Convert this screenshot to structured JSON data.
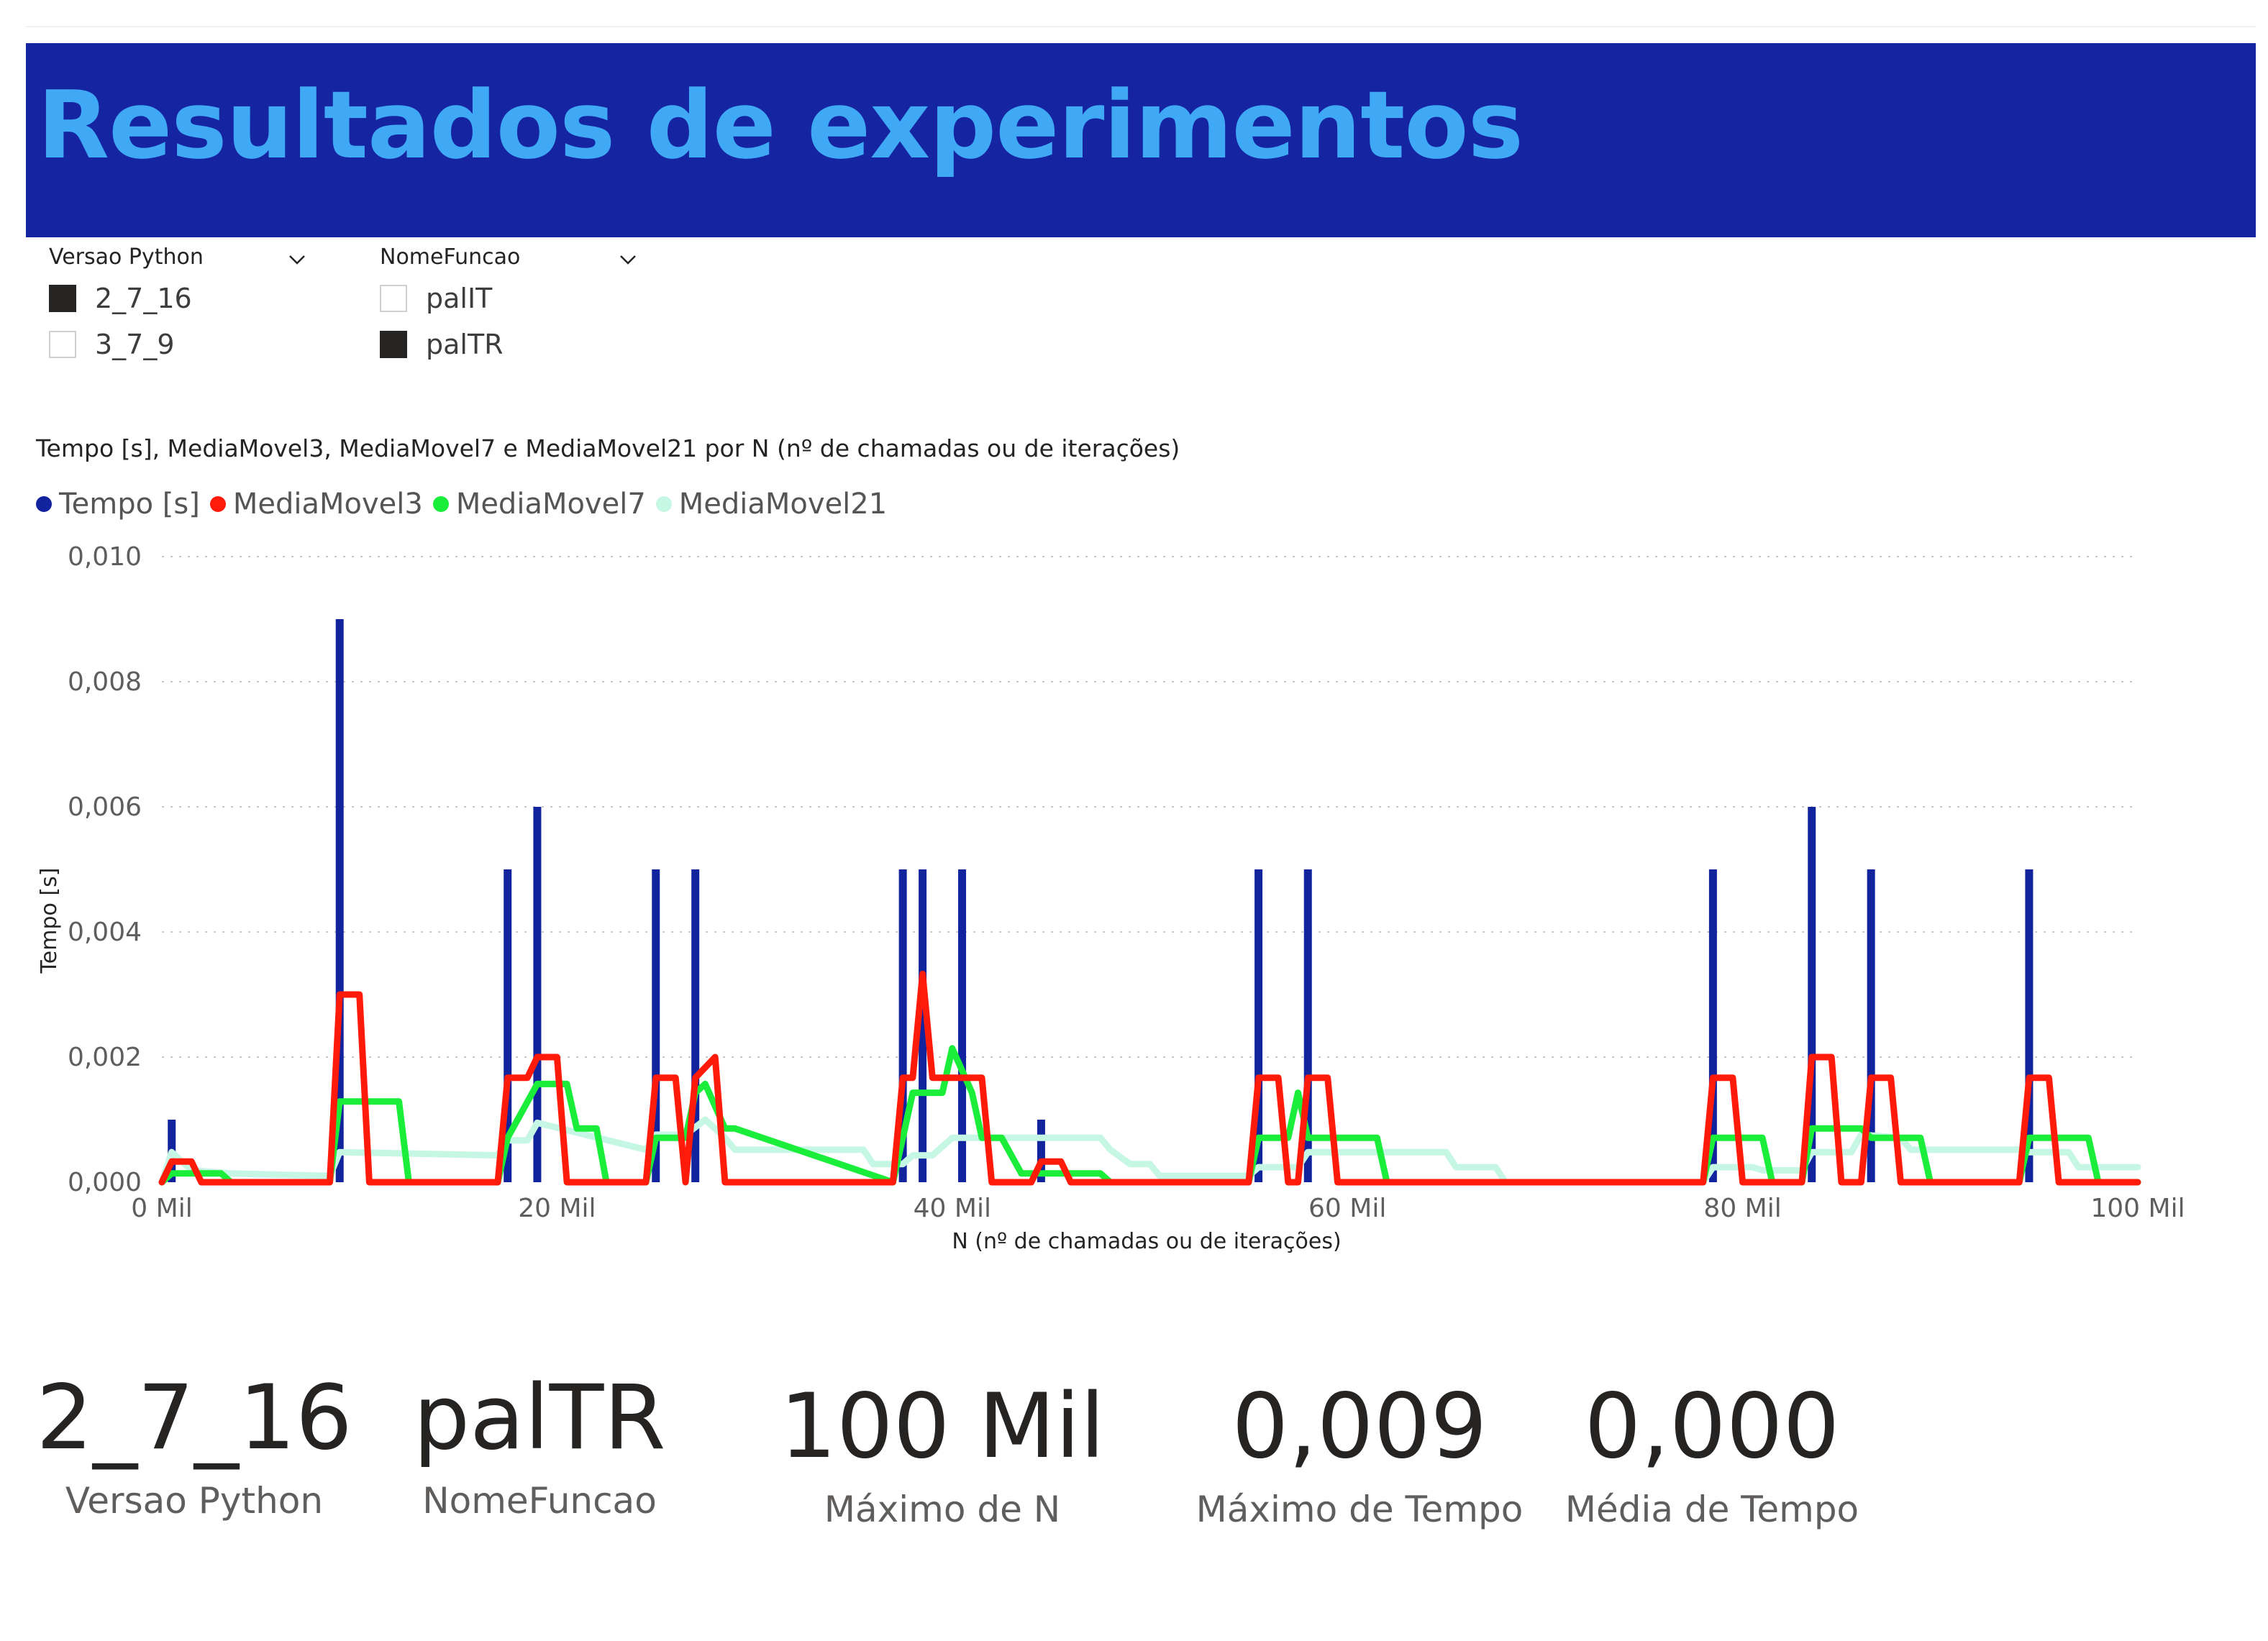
{
  "header": {
    "title": "Resultados de experimentos",
    "banner_color": "#1524a1",
    "title_color": "#3fa9f5"
  },
  "slicers": [
    {
      "title": "Versao Python",
      "icon": "chevron-down-icon",
      "items": [
        {
          "label": "2_7_16",
          "checked": true
        },
        {
          "label": "3_7_9",
          "checked": false
        }
      ]
    },
    {
      "title": "NomeFuncao",
      "icon": "chevron-down-icon",
      "items": [
        {
          "label": "palIT",
          "checked": false
        },
        {
          "label": "palTR",
          "checked": true
        }
      ]
    }
  ],
  "chart_data": {
    "type": "line",
    "title": "Tempo [s], MediaMovel3, MediaMovel7 e MediaMovel21 por N (nº de chamadas ou de iterações)",
    "xlabel": "N (nº de chamadas ou de iterações)",
    "ylabel": "Tempo [s]",
    "xlim": [
      0,
      100000
    ],
    "ylim": [
      0,
      0.01
    ],
    "x_ticks": [
      {
        "value": 0,
        "label": "0 Mil"
      },
      {
        "value": 20000,
        "label": "20 Mil"
      },
      {
        "value": 40000,
        "label": "40 Mil"
      },
      {
        "value": 60000,
        "label": "60 Mil"
      },
      {
        "value": 80000,
        "label": "80 Mil"
      },
      {
        "value": 100000,
        "label": "100 Mil"
      }
    ],
    "y_ticks": [
      {
        "value": 0,
        "label": "0,000"
      },
      {
        "value": 0.002,
        "label": "0,002"
      },
      {
        "value": 0.004,
        "label": "0,004"
      },
      {
        "value": 0.006,
        "label": "0,006"
      },
      {
        "value": 0.008,
        "label": "0,008"
      },
      {
        "value": 0.01,
        "label": "0,010"
      }
    ],
    "grid": "horizontal-dotted",
    "legend_position": "top-left",
    "series": [
      {
        "name": "Tempo [s]",
        "color": "#12239e",
        "style": "spikes",
        "x": [
          500,
          9000,
          17500,
          19000,
          25000,
          27000,
          37500,
          38500,
          40500,
          44500,
          55500,
          58000,
          78500,
          83500,
          86500,
          94500
        ],
        "y": [
          0.001,
          0.009,
          0.005,
          0.006,
          0.005,
          0.005,
          0.005,
          0.005,
          0.005,
          0.001,
          0.005,
          0.005,
          0.005,
          0.006,
          0.005,
          0.005
        ]
      },
      {
        "name": "MediaMovel3",
        "color": "#ff1a0a",
        "x": [
          0,
          500,
          1500,
          2000,
          3500,
          4000,
          8500,
          9000,
          10000,
          10500,
          17000,
          17500,
          18500,
          19000,
          20000,
          20500,
          24500,
          25000,
          26000,
          26500,
          27000,
          28000,
          28500,
          37000,
          37500,
          38000,
          38500,
          39000,
          40000,
          40500,
          41500,
          42000,
          44000,
          44500,
          45500,
          46000,
          55000,
          55500,
          56500,
          57000,
          57500,
          58000,
          59000,
          59500,
          78000,
          78500,
          79500,
          80000,
          83000,
          83500,
          84500,
          85000,
          86000,
          86500,
          87500,
          88000,
          94000,
          94500,
          95500,
          96000,
          100000
        ],
        "y": [
          0,
          0.00033,
          0.00033,
          0,
          0,
          0,
          0,
          0.003,
          0.003,
          0,
          0,
          0.00167,
          0.00167,
          0.002,
          0.002,
          0,
          0,
          0.00167,
          0.00167,
          0,
          0.00167,
          0.002,
          0,
          0,
          0.00167,
          0.00167,
          0.00333,
          0.00167,
          0.00167,
          0.00167,
          0.00167,
          0,
          0,
          0.00033,
          0.00033,
          0,
          0,
          0.00167,
          0.00167,
          0,
          0,
          0.00167,
          0.00167,
          0,
          0,
          0.00167,
          0.00167,
          0,
          0,
          0.002,
          0.002,
          0,
          0,
          0.00167,
          0.00167,
          0,
          0,
          0.00167,
          0.00167,
          0,
          0
        ]
      },
      {
        "name": "MediaMovel7",
        "color": "#1aee3a",
        "x": [
          0,
          500,
          1000,
          3000,
          3500,
          8500,
          9000,
          12000,
          12500,
          17000,
          17500,
          19000,
          20500,
          21000,
          22000,
          22500,
          24500,
          25000,
          26500,
          27000,
          27500,
          28500,
          29000,
          37000,
          37500,
          38000,
          39500,
          40000,
          41000,
          41500,
          42500,
          43500,
          44000,
          47500,
          48000,
          55000,
          55500,
          57000,
          57500,
          58000,
          61500,
          62000,
          78000,
          78500,
          81000,
          81500,
          83000,
          83500,
          86000,
          86500,
          89000,
          89500,
          94000,
          94500,
          97500,
          98000,
          100000
        ],
        "y": [
          0,
          0.00014,
          0.00014,
          0.00014,
          0,
          0,
          0.00129,
          0.00129,
          0,
          0,
          0.00071,
          0.00157,
          0.00157,
          0.00086,
          0.00086,
          0,
          0,
          0.00071,
          0.00071,
          0.00143,
          0.00157,
          0.00086,
          0.00086,
          0,
          0.00071,
          0.00143,
          0.00143,
          0.00214,
          0.00143,
          0.00071,
          0.00071,
          0.00014,
          0.00014,
          0.00014,
          0,
          0,
          0.00071,
          0.00071,
          0.00143,
          0.00071,
          0.00071,
          0,
          0,
          0.00071,
          0.00071,
          0,
          0,
          0.00086,
          0.00086,
          0.00071,
          0.00071,
          0,
          0,
          0.00071,
          0.00071,
          0,
          0
        ]
      },
      {
        "name": "MediaMovel21",
        "color": "#c6f6e4",
        "x": [
          0,
          500,
          1500,
          3500,
          8500,
          9000,
          17000,
          17500,
          18500,
          19000,
          24500,
          25000,
          26500,
          27500,
          28500,
          29000,
          35500,
          36000,
          37500,
          38000,
          39000,
          40000,
          40500,
          47500,
          48000,
          49000,
          50000,
          50500,
          55000,
          55500,
          57500,
          58000,
          65000,
          65500,
          67500,
          68000,
          78000,
          78500,
          80500,
          81000,
          83000,
          83500,
          85500,
          86000,
          88000,
          88500,
          94000,
          94500,
          96500,
          97000,
          100000
        ],
        "y": [
          0,
          0.00048,
          0.00019,
          0.00014,
          0.0001,
          0.00048,
          0.00043,
          0.00067,
          0.00067,
          0.00095,
          0.00052,
          0.00076,
          0.00076,
          0.001,
          0.00071,
          0.00052,
          0.00052,
          0.00029,
          0.00029,
          0.00043,
          0.00043,
          0.00071,
          0.00071,
          0.00071,
          0.00052,
          0.00029,
          0.00029,
          0.0001,
          0.0001,
          0.00024,
          0.00024,
          0.00048,
          0.00048,
          0.00024,
          0.00024,
          0,
          0,
          0.00024,
          0.00024,
          0.00019,
          0.00019,
          0.00048,
          0.00048,
          0.00076,
          0.00071,
          0.00052,
          0.00052,
          0.00048,
          0.00048,
          0.00024,
          0.00024
        ]
      }
    ]
  },
  "cards": [
    {
      "value": "2_7_16",
      "label": "Versao Python"
    },
    {
      "value": "palTR",
      "label": "NomeFuncao"
    },
    {
      "value": "100 Mil",
      "label": "Máximo de N"
    },
    {
      "value": "0,009",
      "label": "Máximo de Tempo"
    },
    {
      "value": "0,000",
      "label": "Média de Tempo"
    }
  ]
}
